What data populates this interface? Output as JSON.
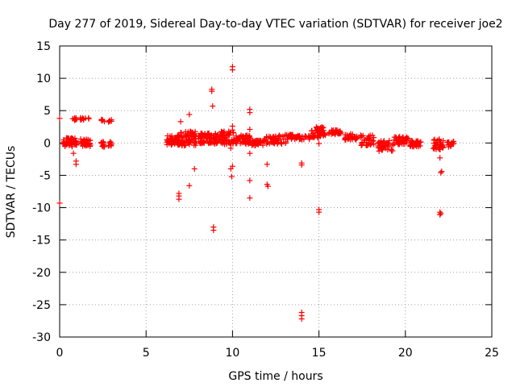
{
  "chart_data": {
    "type": "scatter",
    "title": "Day 277 of 2019, Sidereal Day-to-day VTEC variation (SDTVAR) for receiver joe2",
    "xlabel": "GPS time / hours",
    "ylabel": "SDTVAR / TECUs",
    "xlim": [
      0,
      25
    ],
    "ylim": [
      -30,
      15
    ],
    "xticks": [
      0,
      5,
      10,
      15,
      20,
      25
    ],
    "yticks": [
      -30,
      -25,
      -20,
      -15,
      -10,
      -5,
      0,
      5,
      10,
      15
    ],
    "xtick_labels": [
      "0",
      "5",
      "10",
      "15",
      "20",
      "25"
    ],
    "ytick_labels": [
      "-30",
      "-25",
      "-20",
      "-15",
      "-10",
      "-5",
      "0",
      "5",
      "10",
      "15"
    ],
    "grid": true,
    "marker": "+",
    "marker_color": "#ff0000",
    "clusters": [
      {
        "x0": 0.2,
        "x1": 1.0,
        "y0": -0.6,
        "y1": 0.8,
        "n": 50
      },
      {
        "x0": 1.2,
        "x1": 1.8,
        "y0": -0.6,
        "y1": 0.6,
        "n": 30
      },
      {
        "x0": 2.4,
        "x1": 2.6,
        "y0": -0.6,
        "y1": 0.2,
        "n": 10
      },
      {
        "x0": 2.8,
        "x1": 3.0,
        "y0": -0.5,
        "y1": 0.2,
        "n": 8
      },
      {
        "x0": 0.7,
        "x1": 1.0,
        "y0": 3.5,
        "y1": 3.9,
        "n": 8
      },
      {
        "x0": 1.2,
        "x1": 1.7,
        "y0": 3.4,
        "y1": 3.9,
        "n": 10
      },
      {
        "x0": 2.4,
        "x1": 2.6,
        "y0": 3.3,
        "y1": 3.7,
        "n": 5
      },
      {
        "x0": 2.8,
        "x1": 3.0,
        "y0": 3.2,
        "y1": 3.6,
        "n": 5
      },
      {
        "x0": 6.2,
        "x1": 7.0,
        "y0": -0.3,
        "y1": 1.2,
        "n": 60
      },
      {
        "x0": 7.0,
        "x1": 7.9,
        "y0": -0.5,
        "y1": 1.8,
        "n": 70
      },
      {
        "x0": 8.0,
        "x1": 9.3,
        "y0": -0.2,
        "y1": 1.5,
        "n": 80
      },
      {
        "x0": 9.3,
        "x1": 10.1,
        "y0": -0.3,
        "y1": 1.8,
        "n": 50
      },
      {
        "x0": 10.1,
        "x1": 11.0,
        "y0": -0.2,
        "y1": 1.2,
        "n": 50
      },
      {
        "x0": 11.0,
        "x1": 11.9,
        "y0": -0.4,
        "y1": 0.4,
        "n": 40
      },
      {
        "x0": 11.9,
        "x1": 13.1,
        "y0": -0.2,
        "y1": 1.3,
        "n": 50
      },
      {
        "x0": 13.1,
        "x1": 14.5,
        "y0": 0.5,
        "y1": 1.3,
        "n": 50
      },
      {
        "x0": 14.5,
        "x1": 15.4,
        "y0": 0.8,
        "y1": 2.5,
        "n": 50
      },
      {
        "x0": 15.5,
        "x1": 16.3,
        "y0": 1.3,
        "y1": 2.0,
        "n": 30
      },
      {
        "x0": 16.5,
        "x1": 17.2,
        "y0": 0.4,
        "y1": 1.5,
        "n": 30
      },
      {
        "x0": 17.4,
        "x1": 18.2,
        "y0": -0.4,
        "y1": 1.2,
        "n": 35
      },
      {
        "x0": 18.4,
        "x1": 19.3,
        "y0": -1.3,
        "y1": 0.4,
        "n": 40
      },
      {
        "x0": 19.3,
        "x1": 20.2,
        "y0": -0.2,
        "y1": 1.0,
        "n": 40
      },
      {
        "x0": 20.2,
        "x1": 20.9,
        "y0": -0.6,
        "y1": 0.4,
        "n": 30
      },
      {
        "x0": 21.6,
        "x1": 22.2,
        "y0": -1.0,
        "y1": 0.6,
        "n": 35
      },
      {
        "x0": 22.4,
        "x1": 22.8,
        "y0": -0.6,
        "y1": 0.3,
        "n": 15
      }
    ],
    "points": [
      [
        0.0,
        3.8
      ],
      [
        0.0,
        -9.3
      ],
      [
        0.8,
        -1.6
      ],
      [
        0.95,
        -2.8
      ],
      [
        0.95,
        -3.3
      ],
      [
        7.0,
        3.3
      ],
      [
        7.5,
        -6.6
      ],
      [
        7.5,
        4.4
      ],
      [
        7.8,
        -4.0
      ],
      [
        6.9,
        -7.8
      ],
      [
        6.9,
        -8.2
      ],
      [
        6.9,
        -8.7
      ],
      [
        8.8,
        8.0
      ],
      [
        8.8,
        8.3
      ],
      [
        8.85,
        5.7
      ],
      [
        8.9,
        -13.0
      ],
      [
        8.9,
        -13.5
      ],
      [
        10.0,
        11.3
      ],
      [
        10.0,
        11.8
      ],
      [
        10.0,
        2.6
      ],
      [
        10.0,
        2.0
      ],
      [
        9.9,
        -4.0
      ],
      [
        9.95,
        -5.2
      ],
      [
        10.0,
        -3.6
      ],
      [
        9.9,
        -0.8
      ],
      [
        11.0,
        5.2
      ],
      [
        11.0,
        4.7
      ],
      [
        11.0,
        2.1
      ],
      [
        11.0,
        -1.6
      ],
      [
        11.0,
        -5.8
      ],
      [
        11.0,
        -8.5
      ],
      [
        12.0,
        -3.3
      ],
      [
        12.0,
        -6.4
      ],
      [
        12.05,
        -6.7
      ],
      [
        14.0,
        -26.2
      ],
      [
        14.0,
        -26.7
      ],
      [
        14.0,
        -27.2
      ],
      [
        14.0,
        -3.1
      ],
      [
        14.0,
        -3.4
      ],
      [
        15.0,
        -10.3
      ],
      [
        15.0,
        -10.7
      ],
      [
        15.0,
        -0.1
      ],
      [
        22.0,
        -2.3
      ],
      [
        22.05,
        -4.6
      ],
      [
        22.1,
        -4.4
      ],
      [
        22.0,
        -10.7
      ],
      [
        22.0,
        -11.1
      ],
      [
        22.05,
        -10.9
      ]
    ]
  }
}
